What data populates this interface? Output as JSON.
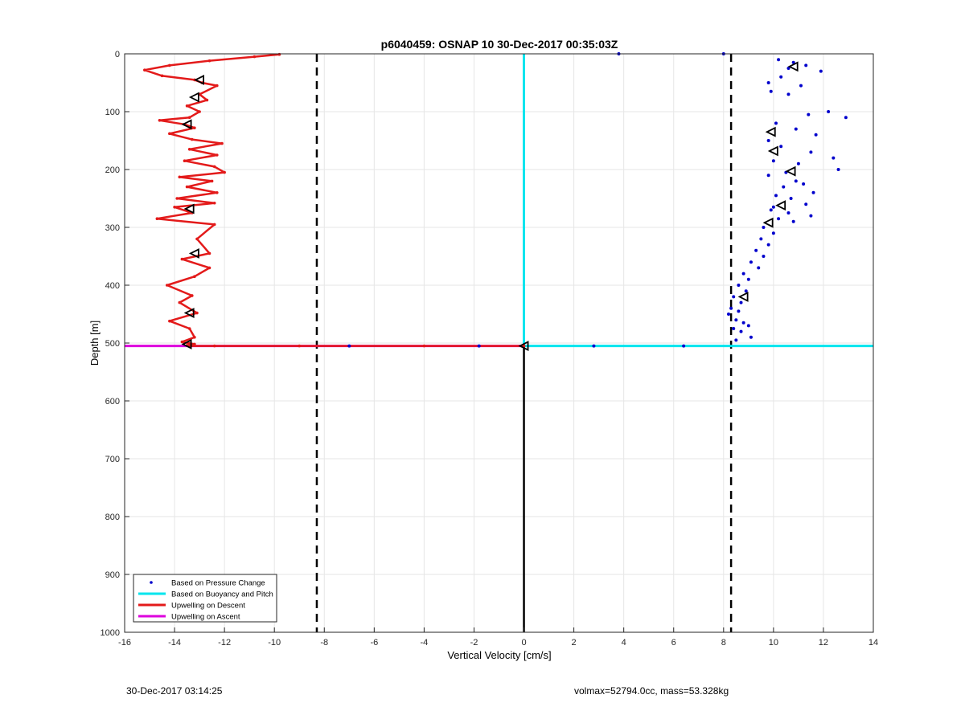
{
  "footer": {
    "timestamp": "30-Dec-2017 03:14:25",
    "params": "volmax=52794.0cc, mass=53.328kg"
  },
  "chart_data": {
    "type": "scatter",
    "title": "p6040459: OSNAP 10 30-Dec-2017 00:35:03Z",
    "xlabel": "Vertical Velocity [cm/s]",
    "ylabel": "Depth [m]",
    "xlim": [
      -16,
      14
    ],
    "ylim": [
      0,
      1000
    ],
    "y_reversed": true,
    "grid": true,
    "xticks": [
      "-16",
      "-14",
      "-12",
      "-10",
      "-8",
      "-6",
      "-4",
      "-2",
      "0",
      "2",
      "4",
      "6",
      "8",
      "10",
      "12",
      "14"
    ],
    "yticks": [
      "0",
      "100",
      "200",
      "300",
      "400",
      "500",
      "600",
      "700",
      "800",
      "900",
      "1000"
    ],
    "legend_position": "bottom-left",
    "legend": [
      {
        "label": "Based on Pressure Change",
        "color": "#0000cc",
        "style": "dot"
      },
      {
        "label": "Based on Buoyancy and Pitch",
        "color": "#00e5ee",
        "style": "line"
      },
      {
        "label": "Upwelling on Descent",
        "color": "#e31a1a",
        "style": "line"
      },
      {
        "label": "Upwelling on Ascent",
        "color": "#dd00dd",
        "style": "line"
      }
    ],
    "reference_lines": {
      "dashed_x": [
        -8.3,
        8.3
      ],
      "solid_black_segment": {
        "x": 0,
        "y": [
          505,
          1000
        ]
      }
    },
    "series": [
      {
        "name": "Upwelling on Descent",
        "color": "#e31a1a",
        "x": [
          -9.8,
          -10.8,
          -12.6,
          -14.2,
          -15.2,
          -14.5,
          -13.2,
          -12.9,
          -12.3,
          -13.0,
          -12.7,
          -13.5,
          -13.0,
          -13.4,
          -14.6,
          -13.6,
          -13.2,
          -14.2,
          -13.3,
          -12.1,
          -13.4,
          -12.3,
          -13.6,
          -12.4,
          -12.0,
          -13.8,
          -12.5,
          -13.5,
          -12.3,
          -13.9,
          -12.4,
          -14.0,
          -13.3,
          -14.7,
          -12.4,
          -13.1,
          -12.6,
          -13.7,
          -12.6,
          -13.2,
          -14.3,
          -13.3,
          -13.8,
          -13.1,
          -14.2,
          -13.4,
          -13.2,
          -13.7,
          -13.2,
          -13.5,
          -13.4,
          -12.4,
          -9.0,
          -4.0,
          0.0
        ],
        "y": [
          1,
          5,
          12,
          20,
          28,
          38,
          45,
          50,
          55,
          70,
          80,
          90,
          100,
          110,
          115,
          122,
          128,
          138,
          148,
          155,
          165,
          175,
          185,
          195,
          205,
          213,
          220,
          230,
          240,
          250,
          258,
          265,
          275,
          285,
          295,
          320,
          345,
          355,
          370,
          385,
          400,
          418,
          430,
          448,
          462,
          475,
          490,
          498,
          502,
          504,
          505,
          505,
          505,
          505,
          505
        ]
      },
      {
        "name": "Upwelling on Ascent",
        "color": "#dd00dd",
        "x": [
          -16.0,
          -10.0,
          -4.0,
          0.0
        ],
        "y": [
          505,
          505,
          505,
          505
        ]
      },
      {
        "name": "Based on Buoyancy and Pitch",
        "color": "#00e5ee",
        "x": [
          0,
          0,
          2,
          6,
          10,
          14
        ],
        "y": [
          0,
          505,
          505,
          505,
          505,
          505
        ]
      },
      {
        "name": "Based on Pressure Change",
        "color": "#0000cc",
        "x": [
          3.8,
          8.0,
          10.2,
          10.8,
          11.3,
          10.6,
          11.9,
          10.3,
          9.8,
          11.1,
          9.9,
          10.6,
          12.2,
          12.9,
          11.4,
          10.1,
          10.9,
          11.7,
          9.8,
          10.3,
          11.5,
          12.4,
          10.0,
          11.0,
          12.6,
          10.5,
          9.8,
          10.9,
          11.2,
          10.4,
          11.6,
          10.1,
          10.7,
          11.3,
          10.0,
          9.9,
          10.6,
          11.5,
          10.2,
          10.8,
          9.6,
          10.0,
          9.5,
          9.8,
          9.3,
          9.6,
          9.1,
          9.4,
          8.8,
          9.0,
          8.6,
          8.9,
          8.4,
          8.7,
          8.3,
          8.6,
          8.2,
          8.5,
          8.8,
          9.0,
          8.4,
          8.7,
          9.1,
          8.5,
          6.4,
          2.8,
          -1.8,
          -7.0
        ],
        "y": [
          0,
          0,
          10,
          15,
          20,
          25,
          30,
          40,
          50,
          55,
          65,
          70,
          100,
          110,
          105,
          120,
          130,
          140,
          150,
          160,
          170,
          180,
          185,
          190,
          200,
          205,
          210,
          220,
          225,
          230,
          240,
          245,
          250,
          260,
          265,
          270,
          275,
          280,
          285,
          290,
          300,
          310,
          320,
          330,
          340,
          350,
          360,
          370,
          380,
          390,
          400,
          410,
          420,
          430,
          440,
          445,
          450,
          460,
          465,
          470,
          475,
          480,
          490,
          495,
          505,
          505,
          505,
          505
        ]
      }
    ],
    "markers": {
      "style": "black open triangles",
      "points": [
        {
          "x": -13.0,
          "y": 45
        },
        {
          "x": -13.2,
          "y": 75
        },
        {
          "x": -13.5,
          "y": 122
        },
        {
          "x": -13.4,
          "y": 268
        },
        {
          "x": -13.2,
          "y": 345
        },
        {
          "x": -13.4,
          "y": 448
        },
        {
          "x": -13.5,
          "y": 502
        },
        {
          "x": 10.8,
          "y": 22
        },
        {
          "x": 9.9,
          "y": 135
        },
        {
          "x": 10.0,
          "y": 168
        },
        {
          "x": 10.7,
          "y": 203
        },
        {
          "x": 10.3,
          "y": 262
        },
        {
          "x": 9.8,
          "y": 292
        },
        {
          "x": 8.8,
          "y": 420
        },
        {
          "x": 0.0,
          "y": 505
        }
      ]
    }
  }
}
